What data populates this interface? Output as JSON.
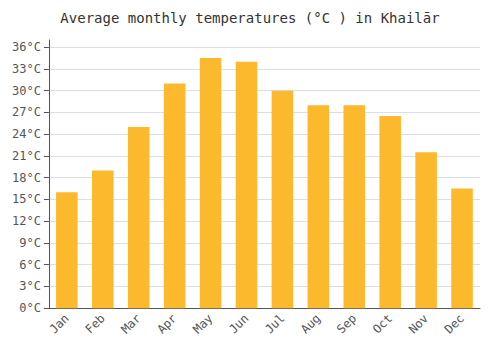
{
  "chart_data": {
    "type": "bar",
    "title": "Average monthly temperatures (°C ) in Khailār",
    "categories": [
      "Jan",
      "Feb",
      "Mar",
      "Apr",
      "May",
      "Jun",
      "Jul",
      "Aug",
      "Sep",
      "Oct",
      "Nov",
      "Dec"
    ],
    "values": [
      16.0,
      19.0,
      25.0,
      31.0,
      34.5,
      34.0,
      30.0,
      28.0,
      28.0,
      26.5,
      21.5,
      16.5
    ],
    "color": "#FDB92E",
    "ylim": [
      0,
      37
    ],
    "yticks": [
      {
        "value": 0,
        "label": "0°C"
      },
      {
        "value": 3,
        "label": "3°C"
      },
      {
        "value": 6,
        "label": "6°C"
      },
      {
        "value": 9,
        "label": "9°C"
      },
      {
        "value": 12,
        "label": "12°C"
      },
      {
        "value": 15,
        "label": "15°C"
      },
      {
        "value": 18,
        "label": "18°C"
      },
      {
        "value": 21,
        "label": "21°C"
      },
      {
        "value": 24,
        "label": "24°C"
      },
      {
        "value": 27,
        "label": "27°C"
      },
      {
        "value": 30,
        "label": "30°C"
      },
      {
        "value": 33,
        "label": "33°C"
      },
      {
        "value": 36,
        "label": "36°C"
      }
    ],
    "grid": true
  }
}
